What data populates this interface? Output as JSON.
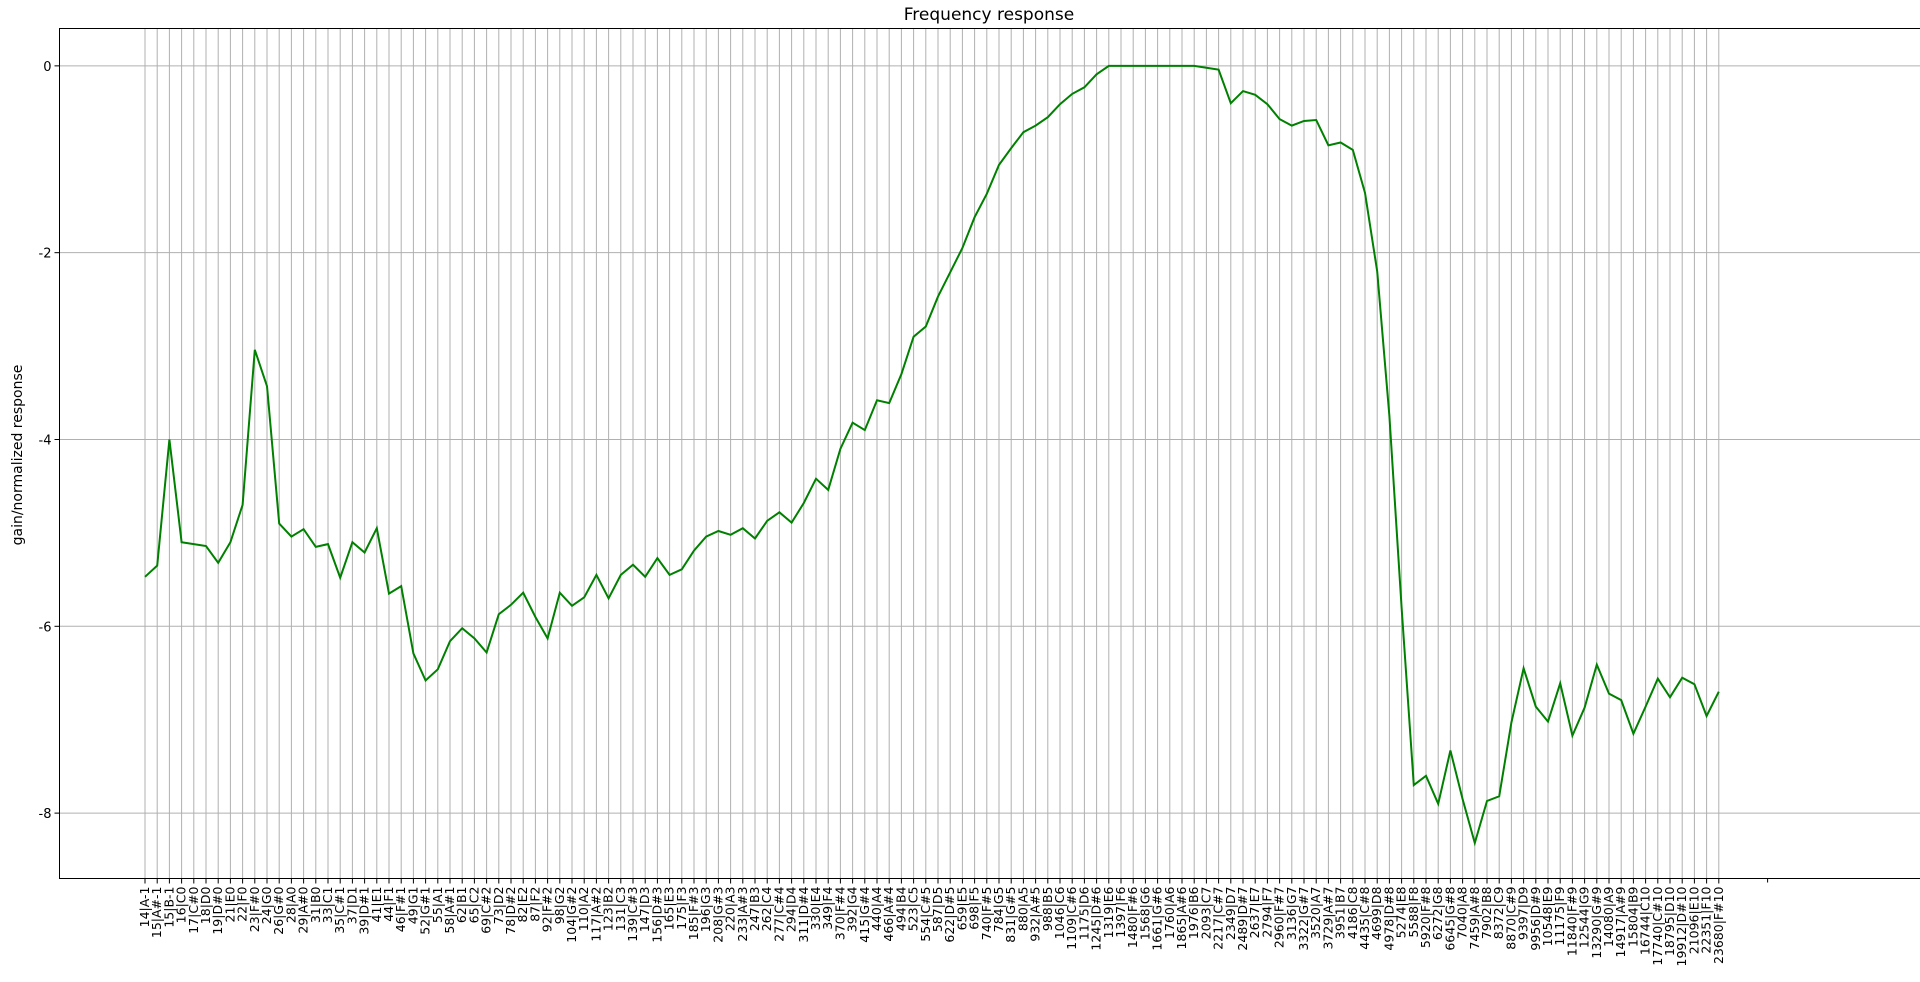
{
  "chart_data": {
    "type": "line",
    "title": "Frequency response",
    "xlabel": "",
    "ylabel": "gain/normalized response",
    "ylim": [
      -8.7,
      0.4
    ],
    "yticks": [
      0,
      -2,
      -4,
      -6,
      -8
    ],
    "grid": true,
    "series_color": "#008000",
    "categories": [
      "14|A-1",
      "15|A#-1",
      "15|B-1",
      "16|C0",
      "17|C#0",
      "18|D0",
      "19|D#0",
      "21|E0",
      "22|F0",
      "23|F#0",
      "24|G0",
      "26|G#0",
      "28|A0",
      "29|A#0",
      "31|B0",
      "33|C1",
      "35|C#1",
      "37|D1",
      "39|D#1",
      "41|E1",
      "44|F1",
      "46|F#1",
      "49|G1",
      "52|G#1",
      "55|A1",
      "58|A#1",
      "62|B1",
      "65|C2",
      "69|C#2",
      "73|D2",
      "78|D#2",
      "82|E2",
      "87|F2",
      "92|F#2",
      "98|G2",
      "104|G#2",
      "110|A2",
      "117|A#2",
      "123|B2",
      "131|C3",
      "139|C#3",
      "147|D3",
      "156|D#3",
      "165|E3",
      "175|F3",
      "185|F#3",
      "196|G3",
      "208|G#3",
      "220|A3",
      "233|A#3",
      "247|B3",
      "262|C4",
      "277|C#4",
      "294|D4",
      "311|D#4",
      "330|E4",
      "349|F4",
      "370|F#4",
      "392|G4",
      "415|G#4",
      "440|A4",
      "466|A#4",
      "494|B4",
      "523|C5",
      "554|C#5",
      "587|D5",
      "622|D#5",
      "659|E5",
      "698|F5",
      "740|F#5",
      "784|G5",
      "831|G#5",
      "880|A5",
      "932|A#5",
      "988|B5",
      "1046|C6",
      "1109|C#6",
      "1175|D6",
      "1245|D#6",
      "1319|E6",
      "1397|F6",
      "1480|F#6",
      "1568|G6",
      "1661|G#6",
      "1760|A6",
      "1865|A#6",
      "1976|B6",
      "2093|C7",
      "2217|C#7",
      "2349|D7",
      "2489|D#7",
      "2637|E7",
      "2794|F7",
      "2960|F#7",
      "3136|G7",
      "3322|G#7",
      "3520|A7",
      "3729|A#7",
      "3951|B7",
      "4186|C8",
      "4435|C#8",
      "4699|D8",
      "4978|D#8",
      "5274|E8",
      "5588|F8",
      "5920|F#8",
      "6272|G8",
      "6645|G#8",
      "7040|A8",
      "7459|A#8",
      "7902|B8",
      "8372|C9",
      "8870|C#9",
      "9397|D9",
      "9956|D#9",
      "10548|E9",
      "11175|F9",
      "11840|F#9",
      "12544|G9",
      "13290|G#9",
      "14080|A9",
      "14917|A#9",
      "15804|B9",
      "16744|C10",
      "17740|C#10",
      "18795|D10",
      "19912|D#10",
      "21096|E10",
      "22351|F10",
      "23680|F#10"
    ],
    "values": [
      -5.47,
      -5.35,
      -4.0,
      -5.1,
      -5.12,
      -5.14,
      -5.32,
      -5.1,
      -4.7,
      -3.04,
      -3.43,
      -4.9,
      -5.04,
      -4.96,
      -5.15,
      -5.12,
      -5.48,
      -5.1,
      -5.21,
      -4.95,
      -5.65,
      -5.57,
      -6.29,
      -6.58,
      -6.46,
      -6.16,
      -6.02,
      -6.13,
      -6.28,
      -5.87,
      -5.77,
      -5.64,
      -5.9,
      -6.13,
      -5.64,
      -5.78,
      -5.69,
      -5.45,
      -5.7,
      -5.45,
      -5.34,
      -5.47,
      -5.27,
      -5.45,
      -5.39,
      -5.19,
      -5.04,
      -4.98,
      -5.02,
      -4.95,
      -5.06,
      -4.87,
      -4.78,
      -4.89,
      -4.68,
      -4.42,
      -4.54,
      -4.1,
      -3.82,
      -3.9,
      -3.58,
      -3.61,
      -3.3,
      -2.9,
      -2.79,
      -2.47,
      -2.21,
      -1.95,
      -1.62,
      -1.37,
      -1.06,
      -0.88,
      -0.71,
      -0.64,
      -0.55,
      -0.41,
      -0.3,
      -0.23,
      -0.09,
      0.0,
      0.0,
      0.0,
      0.0,
      0.0,
      0.0,
      0.0,
      0.0,
      -0.02,
      -0.04,
      -0.4,
      -0.27,
      -0.31,
      -0.41,
      -0.57,
      -0.64,
      -0.59,
      -0.58,
      -0.85,
      -0.82,
      -0.9,
      -1.36,
      -2.2,
      -3.75,
      -5.8,
      -7.7,
      -7.6,
      -7.9,
      -7.33,
      -7.85,
      -8.32,
      -7.87,
      -7.82,
      -7.03,
      -6.45,
      -6.86,
      -7.02,
      -6.61,
      -7.17,
      -6.87,
      -6.41,
      -6.72,
      -6.79,
      -7.15,
      -6.86,
      -6.56,
      -6.76,
      -6.55,
      -6.62,
      -6.96,
      -6.7
    ]
  }
}
